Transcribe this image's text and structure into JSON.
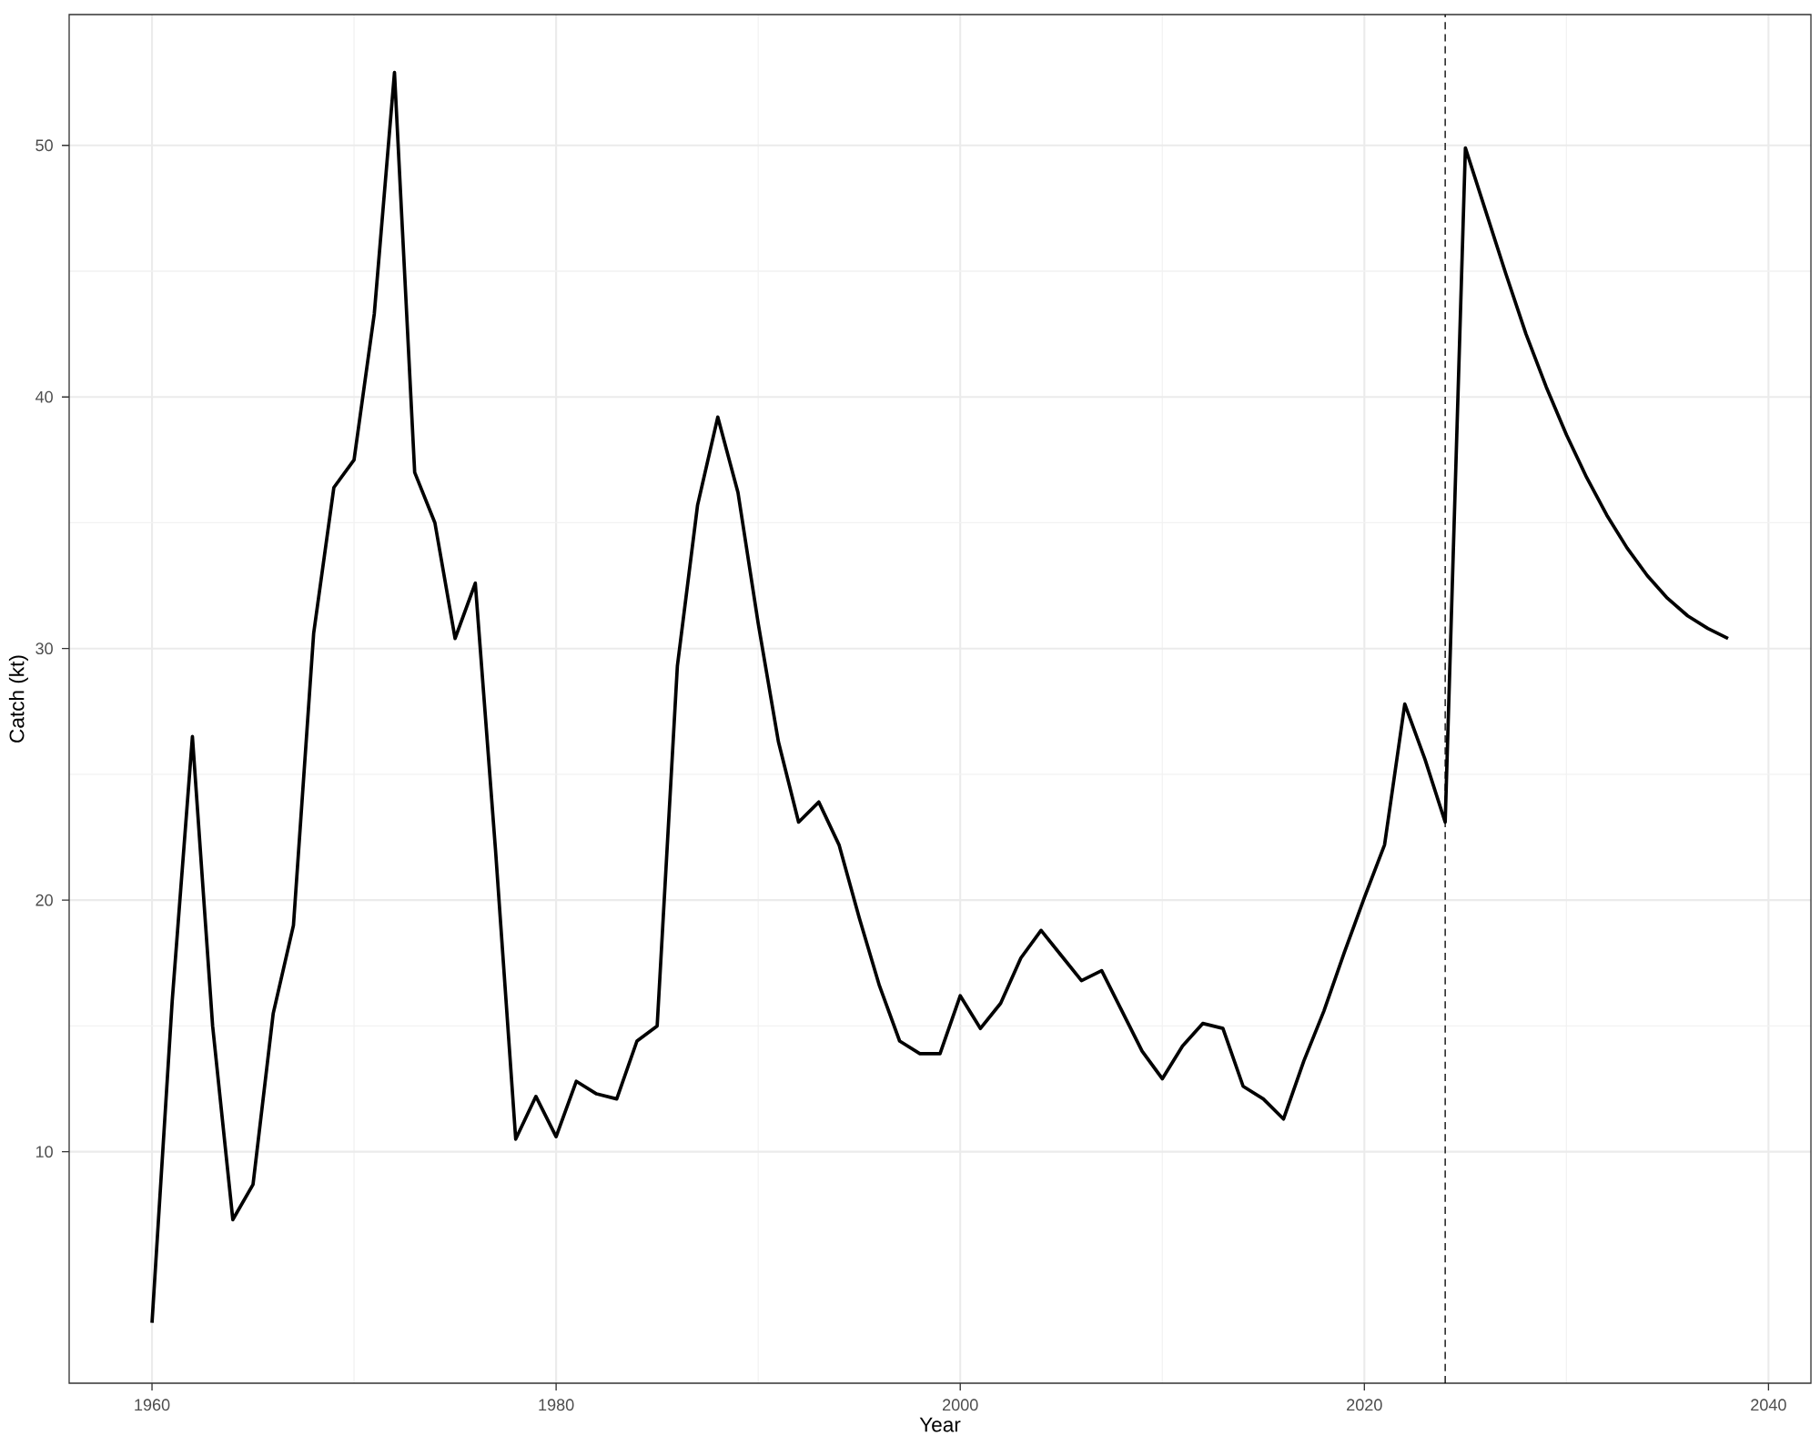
{
  "chart_data": {
    "type": "line",
    "xlabel": "Year",
    "ylabel": "Catch (kt)",
    "x": [
      1960,
      1961,
      1962,
      1963,
      1964,
      1965,
      1966,
      1967,
      1968,
      1969,
      1970,
      1971,
      1972,
      1973,
      1974,
      1975,
      1976,
      1977,
      1978,
      1979,
      1980,
      1981,
      1982,
      1983,
      1984,
      1985,
      1986,
      1987,
      1988,
      1989,
      1990,
      1991,
      1992,
      1993,
      1994,
      1995,
      1996,
      1997,
      1998,
      1999,
      2000,
      2001,
      2002,
      2003,
      2004,
      2005,
      2006,
      2007,
      2008,
      2009,
      2010,
      2011,
      2012,
      2013,
      2014,
      2015,
      2016,
      2017,
      2018,
      2019,
      2020,
      2021,
      2022,
      2023,
      2024,
      2025,
      2026,
      2027,
      2028,
      2029,
      2030,
      2031,
      2032,
      2033,
      2034,
      2035,
      2036,
      2037,
      2038
    ],
    "series": [
      {
        "color": "#000000",
        "values": [
          3.2,
          16,
          26.5,
          15,
          7.3,
          8.7,
          15.5,
          19,
          30.6,
          36.4,
          37.5,
          43.3,
          52.9,
          37,
          35,
          30.4,
          32.6,
          22,
          10.5,
          12.2,
          10.6,
          12.8,
          12.3,
          12.1,
          14.4,
          15,
          29.3,
          35.7,
          39.2,
          36.2,
          31,
          26.3,
          23.1,
          23.9,
          22.2,
          19.3,
          16.6,
          14.4,
          13.9,
          13.9,
          16.2,
          14.9,
          15.9,
          17.7,
          18.8,
          17.8,
          16.8,
          17.2,
          15.6,
          14,
          12.9,
          14.2,
          15.1,
          14.9,
          12.6,
          12.1,
          11.3,
          13.6,
          15.6,
          17.9,
          20.1,
          22.2,
          27.8,
          25.6,
          23.1,
          49.9,
          47.4,
          44.9,
          42.5,
          40.4,
          38.5,
          36.8,
          35.3,
          34,
          32.9,
          32,
          31.3,
          30.8,
          30.4
        ]
      }
    ],
    "xlim": [
      1955.9,
      2042.1
    ],
    "ylim": [
      0.8,
      55.2
    ],
    "xticks": [
      1960,
      1980,
      2000,
      2020,
      2040
    ],
    "yticks": [
      10,
      20,
      30,
      40,
      50
    ],
    "grid": true,
    "line_style": "solid",
    "marker": "none",
    "ref_lines": [
      {
        "axis": "x",
        "value": 2024,
        "color": "#000000",
        "line_style": "dashed"
      }
    ]
  }
}
